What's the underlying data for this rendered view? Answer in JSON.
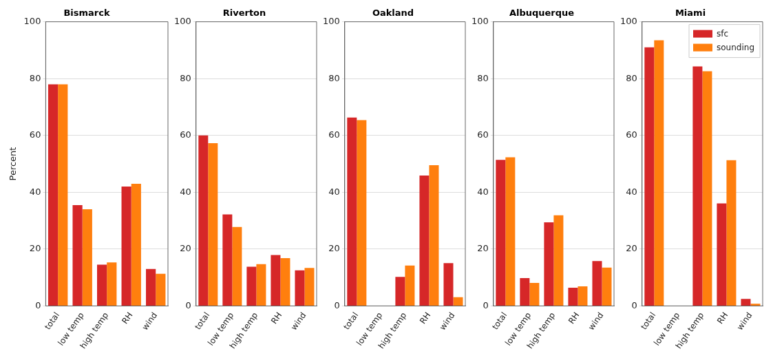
{
  "chart_data": [
    {
      "type": "bar",
      "title": "Bismarck",
      "ylabel": "Percent",
      "categories": [
        "total",
        "low temp",
        "high temp",
        "RH",
        "wind"
      ],
      "ylim": [
        0,
        100
      ],
      "yticks": [
        0,
        20,
        40,
        60,
        80,
        100
      ],
      "grid": "y",
      "series": [
        {
          "color": "#d62728",
          "values": [
            78,
            35.5,
            14.5,
            42,
            13
          ]
        },
        {
          "color": "#ff7f0e",
          "values": [
            78,
            34,
            15.3,
            43,
            11.3
          ]
        }
      ]
    },
    {
      "type": "bar",
      "title": "Riverton",
      "categories": [
        "total",
        "low temp",
        "high temp",
        "RH",
        "wind"
      ],
      "ylim": [
        0,
        100
      ],
      "yticks": [
        0,
        20,
        40,
        60,
        80,
        100
      ],
      "grid": "y",
      "series": [
        {
          "color": "#d62728",
          "values": [
            60,
            32.2,
            13.8,
            17.9,
            12.5
          ]
        },
        {
          "color": "#ff7f0e",
          "values": [
            57.3,
            27.8,
            14.7,
            16.8,
            13.4
          ]
        }
      ]
    },
    {
      "type": "bar",
      "title": "Oakland",
      "categories": [
        "total",
        "low temp",
        "high temp",
        "RH",
        "wind"
      ],
      "ylim": [
        0,
        100
      ],
      "yticks": [
        0,
        20,
        40,
        60,
        80,
        100
      ],
      "grid": "y",
      "series": [
        {
          "color": "#d62728",
          "values": [
            66.3,
            0,
            10.2,
            45.9,
            15.1
          ]
        },
        {
          "color": "#ff7f0e",
          "values": [
            65.4,
            0,
            14.2,
            49.5,
            3.1
          ]
        }
      ]
    },
    {
      "type": "bar",
      "title": "Albuquerque",
      "categories": [
        "total",
        "low temp",
        "high temp",
        "RH",
        "wind"
      ],
      "ylim": [
        0,
        100
      ],
      "yticks": [
        0,
        20,
        40,
        60,
        80,
        100
      ],
      "grid": "y",
      "series": [
        {
          "color": "#d62728",
          "values": [
            51.4,
            9.8,
            29.4,
            6.4,
            15.8
          ]
        },
        {
          "color": "#ff7f0e",
          "values": [
            52.3,
            8.1,
            31.9,
            6.9,
            13.5
          ]
        }
      ]
    },
    {
      "type": "bar",
      "title": "Miami",
      "categories": [
        "total",
        "low temp",
        "high temp",
        "RH",
        "wind"
      ],
      "ylim": [
        0,
        100
      ],
      "yticks": [
        0,
        20,
        40,
        60,
        80,
        100
      ],
      "grid": "y",
      "legend": "top right",
      "series": [
        {
          "name": "sfc",
          "color": "#d62728",
          "values": [
            91,
            0,
            84.3,
            36.1,
            2.5
          ]
        },
        {
          "name": "sounding",
          "color": "#ff7f0e",
          "values": [
            93.5,
            0,
            82.6,
            51.3,
            0.8
          ]
        }
      ]
    }
  ]
}
